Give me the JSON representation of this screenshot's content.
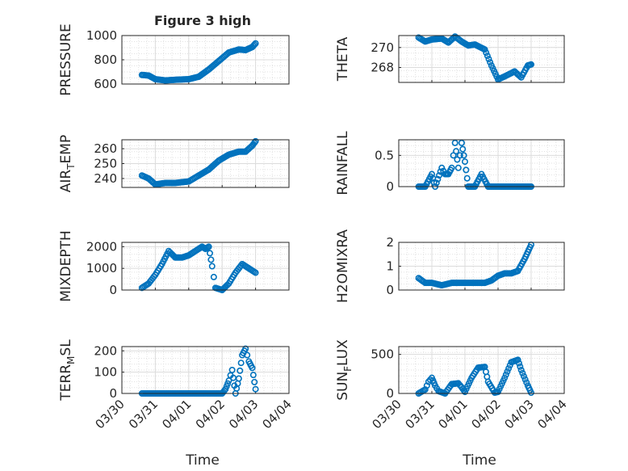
{
  "figure": {
    "title": "Figure 3 high",
    "xlabel": "Time",
    "x_ticks": [
      "03/30",
      "03/31",
      "04/01",
      "04/02",
      "04/03",
      "04/04"
    ]
  },
  "chart_data": [
    {
      "type": "scatter",
      "ylabel": "PRESSURE",
      "ylim": [
        600,
        1000
      ],
      "yticks": [
        "600",
        "800",
        "1000"
      ],
      "xlim": [
        "03/30",
        "04/04"
      ],
      "grid": true,
      "color": "#0072BD",
      "series": [
        {
          "x_days": [
            0.6,
            0.8,
            1.0,
            1.3,
            1.6,
            2.0,
            2.3,
            2.6,
            2.9,
            3.2,
            3.5,
            3.7,
            3.9,
            4.0
          ],
          "values": [
            675,
            670,
            640,
            630,
            635,
            640,
            660,
            720,
            790,
            860,
            885,
            880,
            905,
            935
          ]
        }
      ]
    },
    {
      "type": "scatter",
      "ylabel": "THETA",
      "ylim": [
        266.5,
        271.2
      ],
      "yticks": [
        "268",
        "270"
      ],
      "xlim": [
        "03/30",
        "04/04"
      ],
      "grid": true,
      "color": "#0072BD",
      "series": [
        {
          "x_days": [
            0.6,
            0.8,
            1.0,
            1.3,
            1.5,
            1.7,
            1.9,
            2.1,
            2.3,
            2.6,
            2.8,
            3.0,
            3.2,
            3.5,
            3.7,
            3.9,
            4.0
          ],
          "values": [
            271.0,
            270.6,
            270.8,
            270.9,
            270.5,
            271.1,
            270.6,
            270.2,
            270.3,
            269.8,
            268.2,
            266.8,
            267.1,
            267.6,
            267.0,
            268.2,
            268.3
          ]
        }
      ]
    },
    {
      "type": "scatter",
      "ylabel": "AIR_TEMP",
      "ylim": [
        234,
        266
      ],
      "yticks": [
        "240",
        "250",
        "260"
      ],
      "xlim": [
        "03/30",
        "04/04"
      ],
      "grid": true,
      "color": "#0072BD",
      "series": [
        {
          "x_days": [
            0.6,
            0.8,
            1.0,
            1.3,
            1.6,
            2.0,
            2.3,
            2.6,
            2.9,
            3.2,
            3.5,
            3.7,
            3.9,
            4.0
          ],
          "values": [
            242,
            240,
            236,
            237,
            237,
            238,
            242,
            246,
            252,
            256,
            258,
            258,
            262,
            265
          ]
        }
      ]
    },
    {
      "type": "scatter",
      "ylabel": "RAINFALL",
      "ylim": [
        0,
        0.75
      ],
      "yticks": [
        "0",
        "0.5"
      ],
      "xlim": [
        "03/30",
        "04/04"
      ],
      "grid": true,
      "color": "#0072BD",
      "series": [
        {
          "x_days": [
            0.6,
            0.8,
            1.0,
            1.1,
            1.3,
            1.4,
            1.5,
            1.6,
            1.7,
            1.8,
            1.9,
            2.0,
            2.1,
            2.3,
            2.5,
            2.7,
            3.0,
            3.5,
            4.0
          ],
          "values": [
            0,
            0,
            0.2,
            0,
            0.3,
            0.2,
            0.2,
            0.3,
            0.7,
            0.3,
            0.7,
            0.4,
            0,
            0,
            0.2,
            0,
            0,
            0,
            0
          ]
        }
      ]
    },
    {
      "type": "scatter",
      "ylabel": "MIXDEPTH",
      "ylim": [
        0,
        2200
      ],
      "yticks": [
        "0",
        "1000",
        "2000"
      ],
      "xlim": [
        "03/30",
        "04/04"
      ],
      "grid": true,
      "color": "#0072BD",
      "series": [
        {
          "x_days": [
            0.6,
            0.8,
            1.0,
            1.2,
            1.4,
            1.6,
            1.8,
            2.0,
            2.2,
            2.4,
            2.5,
            2.6,
            2.7,
            2.8,
            3.0,
            3.2,
            3.4,
            3.6,
            3.8,
            4.0
          ],
          "values": [
            100,
            300,
            700,
            1200,
            1800,
            1500,
            1500,
            1600,
            1800,
            2000,
            1900,
            2000,
            1100,
            100,
            0,
            300,
            800,
            1200,
            1000,
            800
          ]
        }
      ]
    },
    {
      "type": "scatter",
      "ylabel": "H2OMIXRA",
      "ylim": [
        0,
        2
      ],
      "yticks": [
        "0",
        "1",
        "2"
      ],
      "xlim": [
        "03/30",
        "04/04"
      ],
      "grid": true,
      "color": "#0072BD",
      "series": [
        {
          "x_days": [
            0.6,
            0.8,
            1.0,
            1.3,
            1.6,
            2.0,
            2.3,
            2.6,
            2.8,
            3.0,
            3.2,
            3.4,
            3.6,
            3.8,
            3.9,
            4.0
          ],
          "values": [
            0.5,
            0.3,
            0.3,
            0.2,
            0.3,
            0.3,
            0.3,
            0.3,
            0.4,
            0.6,
            0.7,
            0.7,
            0.8,
            1.3,
            1.6,
            1.9
          ]
        }
      ]
    },
    {
      "type": "scatter",
      "ylabel": "TERR_MSL",
      "ylim": [
        0,
        220
      ],
      "yticks": [
        "0",
        "100",
        "200"
      ],
      "xlim": [
        "03/30",
        "04/04"
      ],
      "grid": true,
      "color": "#0072BD",
      "series": [
        {
          "x_days": [
            0.6,
            0.8,
            1.0,
            1.5,
            2.0,
            2.5,
            2.8,
            3.0,
            3.1,
            3.2,
            3.3,
            3.4,
            3.5,
            3.6,
            3.7,
            3.8,
            3.9,
            4.0
          ],
          "values": [
            0,
            0,
            0,
            0,
            0,
            0,
            0,
            0,
            20,
            60,
            110,
            0,
            70,
            180,
            210,
            150,
            120,
            20
          ]
        }
      ]
    },
    {
      "type": "scatter",
      "ylabel": "SUN_FLUX",
      "ylim": [
        0,
        600
      ],
      "yticks": [
        "0",
        "500"
      ],
      "xlim": [
        "03/30",
        "04/04"
      ],
      "grid": true,
      "color": "#0072BD",
      "series": [
        {
          "x_days": [
            0.6,
            0.8,
            0.9,
            1.0,
            1.1,
            1.2,
            1.4,
            1.6,
            1.8,
            1.9,
            2.0,
            2.2,
            2.4,
            2.6,
            2.7,
            2.9,
            3.0,
            3.2,
            3.4,
            3.6,
            3.7,
            3.9,
            4.0
          ],
          "values": [
            0,
            50,
            150,
            200,
            100,
            30,
            0,
            120,
            130,
            80,
            20,
            200,
            330,
            340,
            150,
            10,
            20,
            200,
            400,
            430,
            300,
            100,
            10
          ]
        }
      ]
    }
  ]
}
